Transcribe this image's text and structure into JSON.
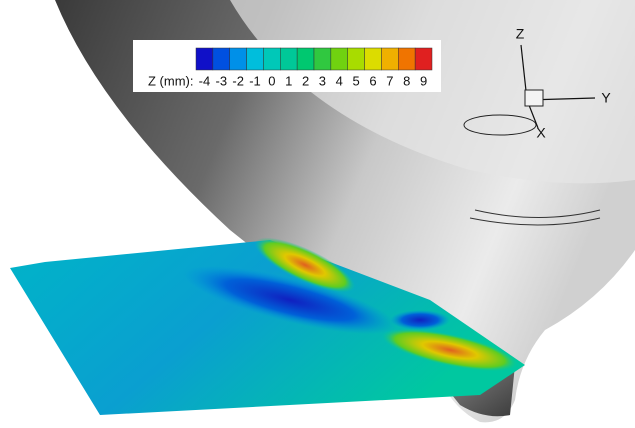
{
  "legend": {
    "label": "Z (mm):",
    "levels": [
      -4,
      -3,
      -2,
      -1,
      0,
      1,
      2,
      3,
      4,
      5,
      6,
      7,
      8,
      9
    ],
    "colors": [
      "#1010c8",
      "#0050e0",
      "#0090e8",
      "#00bedc",
      "#00c8b8",
      "#00c898",
      "#00c870",
      "#30c840",
      "#70d210",
      "#a8dc00",
      "#dcdc00",
      "#f0b000",
      "#f07400",
      "#e02020"
    ]
  },
  "axes": {
    "z": "Z",
    "y": "Y",
    "x": "X"
  }
}
